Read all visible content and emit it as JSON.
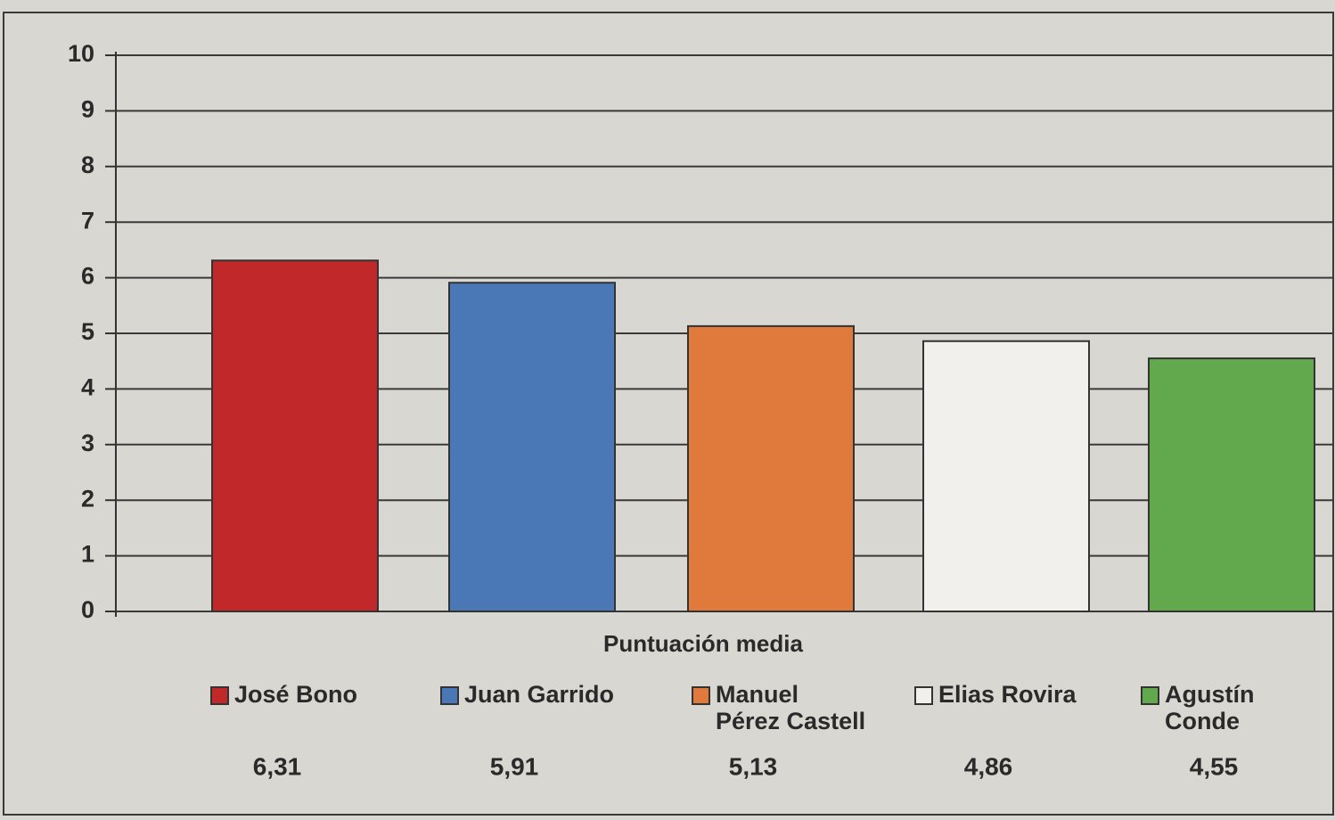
{
  "chart_data": {
    "type": "bar",
    "x_label": "Puntuación media",
    "categories": [
      "José Bono",
      "Juan Garrido",
      "Manuel\nPérez Castell",
      "Elias Rovira",
      "Agustín Conde"
    ],
    "values": [
      6.31,
      5.91,
      5.13,
      4.86,
      4.55
    ],
    "value_labels": [
      "6,31",
      "5,91",
      "5,13",
      "4,86",
      "4,55"
    ],
    "colors": [
      "#c0282a",
      "#4a78b6",
      "#e07a3c",
      "#f1f0ec",
      "#62a84c"
    ],
    "ylim": [
      0,
      10
    ],
    "yticks": [
      0,
      1,
      2,
      3,
      4,
      5,
      6,
      7,
      8,
      9,
      10
    ],
    "grid": true
  }
}
